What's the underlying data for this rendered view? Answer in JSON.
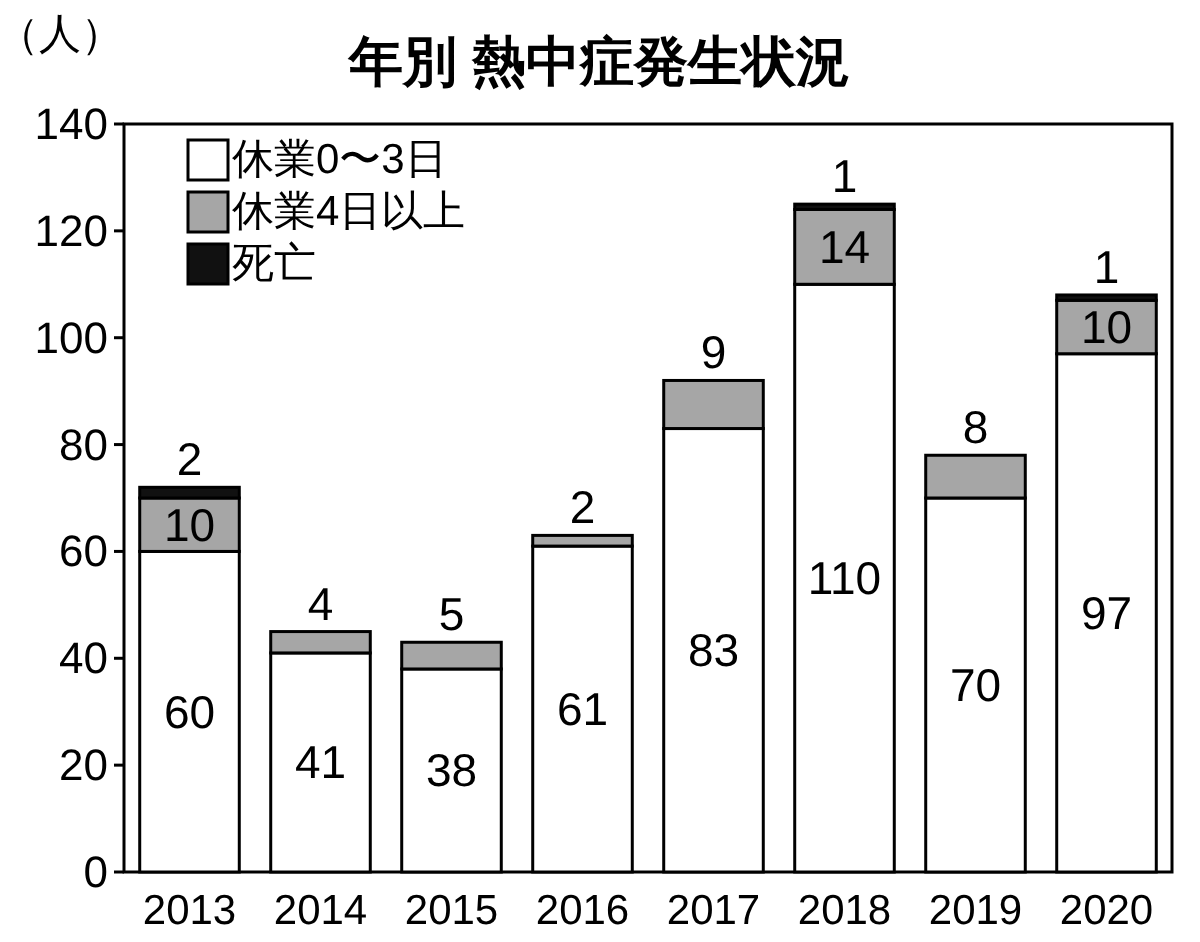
{
  "chart_data": {
    "type": "bar",
    "title": "年別 熱中症発生状況",
    "ylabel": "（人）",
    "stacked": true,
    "legend": "top left",
    "ylim": [
      0,
      140
    ],
    "yticks": [
      0,
      20,
      40,
      60,
      80,
      100,
      120,
      140
    ],
    "categories": [
      "2013",
      "2014",
      "2015",
      "2016",
      "2017",
      "2018",
      "2019",
      "2020"
    ],
    "series": [
      {
        "name": "休業0〜3日",
        "color": "#ffffff",
        "values": [
          60,
          41,
          38,
          61,
          83,
          110,
          70,
          97
        ],
        "value_labels": [
          "60",
          "41",
          "38",
          "61",
          "83",
          "110",
          "70",
          "97"
        ]
      },
      {
        "name": "休業4日以上",
        "color": "#a6a6a6",
        "values": [
          10,
          4,
          5,
          2,
          9,
          14,
          8,
          10
        ],
        "value_labels": [
          "10",
          "4",
          "5",
          "2",
          "9",
          "14",
          "8",
          "10"
        ]
      },
      {
        "name": "死亡",
        "color": "#111111",
        "values": [
          2,
          0,
          0,
          0,
          0,
          1,
          0,
          1
        ],
        "value_labels": [
          "2",
          null,
          null,
          null,
          null,
          "1",
          null,
          "1"
        ]
      }
    ]
  }
}
